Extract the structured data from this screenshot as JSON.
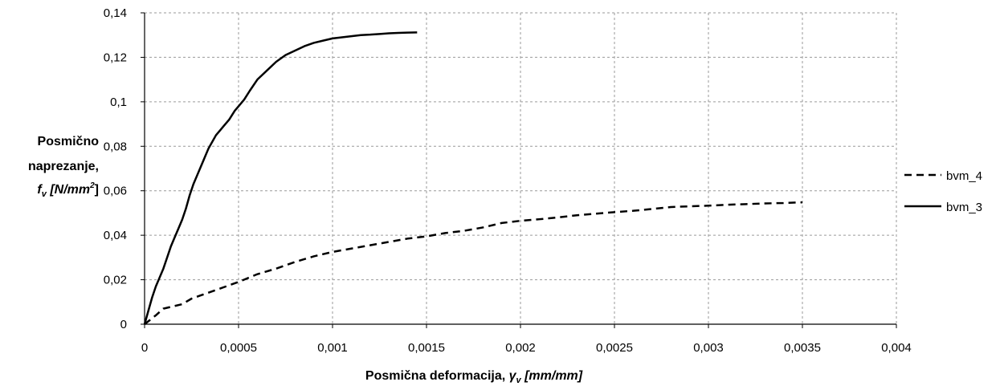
{
  "chart_data": {
    "type": "line",
    "title": "",
    "xlabel": "Posmična deformacija, γv [mm/mm]",
    "ylabel": "Posmično naprezanje, fv [N/mm²]",
    "xlabel_parts": {
      "main": "Posmična deformacija, ",
      "symbol": "γ",
      "sub": "v",
      "unit": " [mm/mm]"
    },
    "ylabel_parts": {
      "line1": "Posmično",
      "line2": "naprezanje,",
      "symbol": "f",
      "sub": "v",
      "unit_open": " [N/mm",
      "sup": "2",
      "unit_close": "]"
    },
    "xlim": [
      0,
      0.004
    ],
    "ylim": [
      0,
      0.14
    ],
    "x_ticks": [
      0,
      0.0005,
      0.001,
      0.0015,
      0.002,
      0.0025,
      0.003,
      0.0035,
      0.004
    ],
    "x_tick_labels": [
      "0",
      "0,0005",
      "0,001",
      "0,0015",
      "0,002",
      "0,0025",
      "0,003",
      "0,0035",
      "0,004"
    ],
    "y_ticks": [
      0,
      0.02,
      0.04,
      0.06,
      0.08,
      0.1,
      0.12,
      0.14
    ],
    "y_tick_labels": [
      "0",
      "0,02",
      "0,04",
      "0,06",
      "0,08",
      "0,1",
      "0,12",
      "0,14"
    ],
    "grid": true,
    "grid_style": "dashed",
    "legend_position": "right",
    "series": [
      {
        "name": "bvm_4",
        "style": "dashed",
        "color": "#000000",
        "x": [
          0,
          3e-05,
          6e-05,
          0.0001,
          0.00015,
          0.0002,
          0.00025,
          0.0003,
          0.0004,
          0.0005,
          0.0006,
          0.0007,
          0.0008,
          0.0009,
          0.001,
          0.0011,
          0.0012,
          0.0013,
          0.0014,
          0.0015,
          0.0016,
          0.0017,
          0.0018,
          0.0019,
          0.002,
          0.0021,
          0.0022,
          0.0023,
          0.0024,
          0.0025,
          0.0026,
          0.0027,
          0.0028,
          0.0029,
          0.003,
          0.0031,
          0.0032,
          0.0033,
          0.0034,
          0.0035
        ],
        "y": [
          0,
          0.002,
          0.004,
          0.007,
          0.008,
          0.009,
          0.0115,
          0.013,
          0.016,
          0.019,
          0.0225,
          0.025,
          0.028,
          0.0305,
          0.0325,
          0.034,
          0.0355,
          0.037,
          0.0385,
          0.0395,
          0.041,
          0.042,
          0.0435,
          0.0455,
          0.0465,
          0.0472,
          0.048,
          0.049,
          0.0497,
          0.0504,
          0.051,
          0.0518,
          0.0527,
          0.053,
          0.0533,
          0.0537,
          0.054,
          0.0543,
          0.0545,
          0.0548
        ]
      },
      {
        "name": "bvm_3",
        "style": "solid",
        "color": "#000000",
        "x": [
          0,
          2e-05,
          4e-05,
          6e-05,
          8e-05,
          0.0001,
          0.00012,
          0.00014,
          0.00016,
          0.00018,
          0.0002,
          0.00022,
          0.00024,
          0.00026,
          0.00028,
          0.0003,
          0.00032,
          0.00034,
          0.00036,
          0.00038,
          0.0004,
          0.00042,
          0.00045,
          0.00048,
          0.0005,
          0.00053,
          0.00056,
          0.0006,
          0.00065,
          0.0007,
          0.00075,
          0.0008,
          0.00085,
          0.0009,
          0.00095,
          0.001,
          0.00105,
          0.0011,
          0.00115,
          0.0012,
          0.00125,
          0.0013,
          0.00135,
          0.0014,
          0.00145
        ],
        "y": [
          0,
          0.006,
          0.012,
          0.017,
          0.021,
          0.025,
          0.03,
          0.035,
          0.039,
          0.043,
          0.047,
          0.052,
          0.058,
          0.063,
          0.067,
          0.071,
          0.075,
          0.079,
          0.082,
          0.085,
          0.087,
          0.089,
          0.092,
          0.096,
          0.098,
          0.101,
          0.105,
          0.11,
          0.114,
          0.118,
          0.121,
          0.123,
          0.125,
          0.1265,
          0.1275,
          0.1285,
          0.129,
          0.1295,
          0.13,
          0.1302,
          0.1305,
          0.1308,
          0.131,
          0.1311,
          0.1312
        ]
      }
    ]
  }
}
